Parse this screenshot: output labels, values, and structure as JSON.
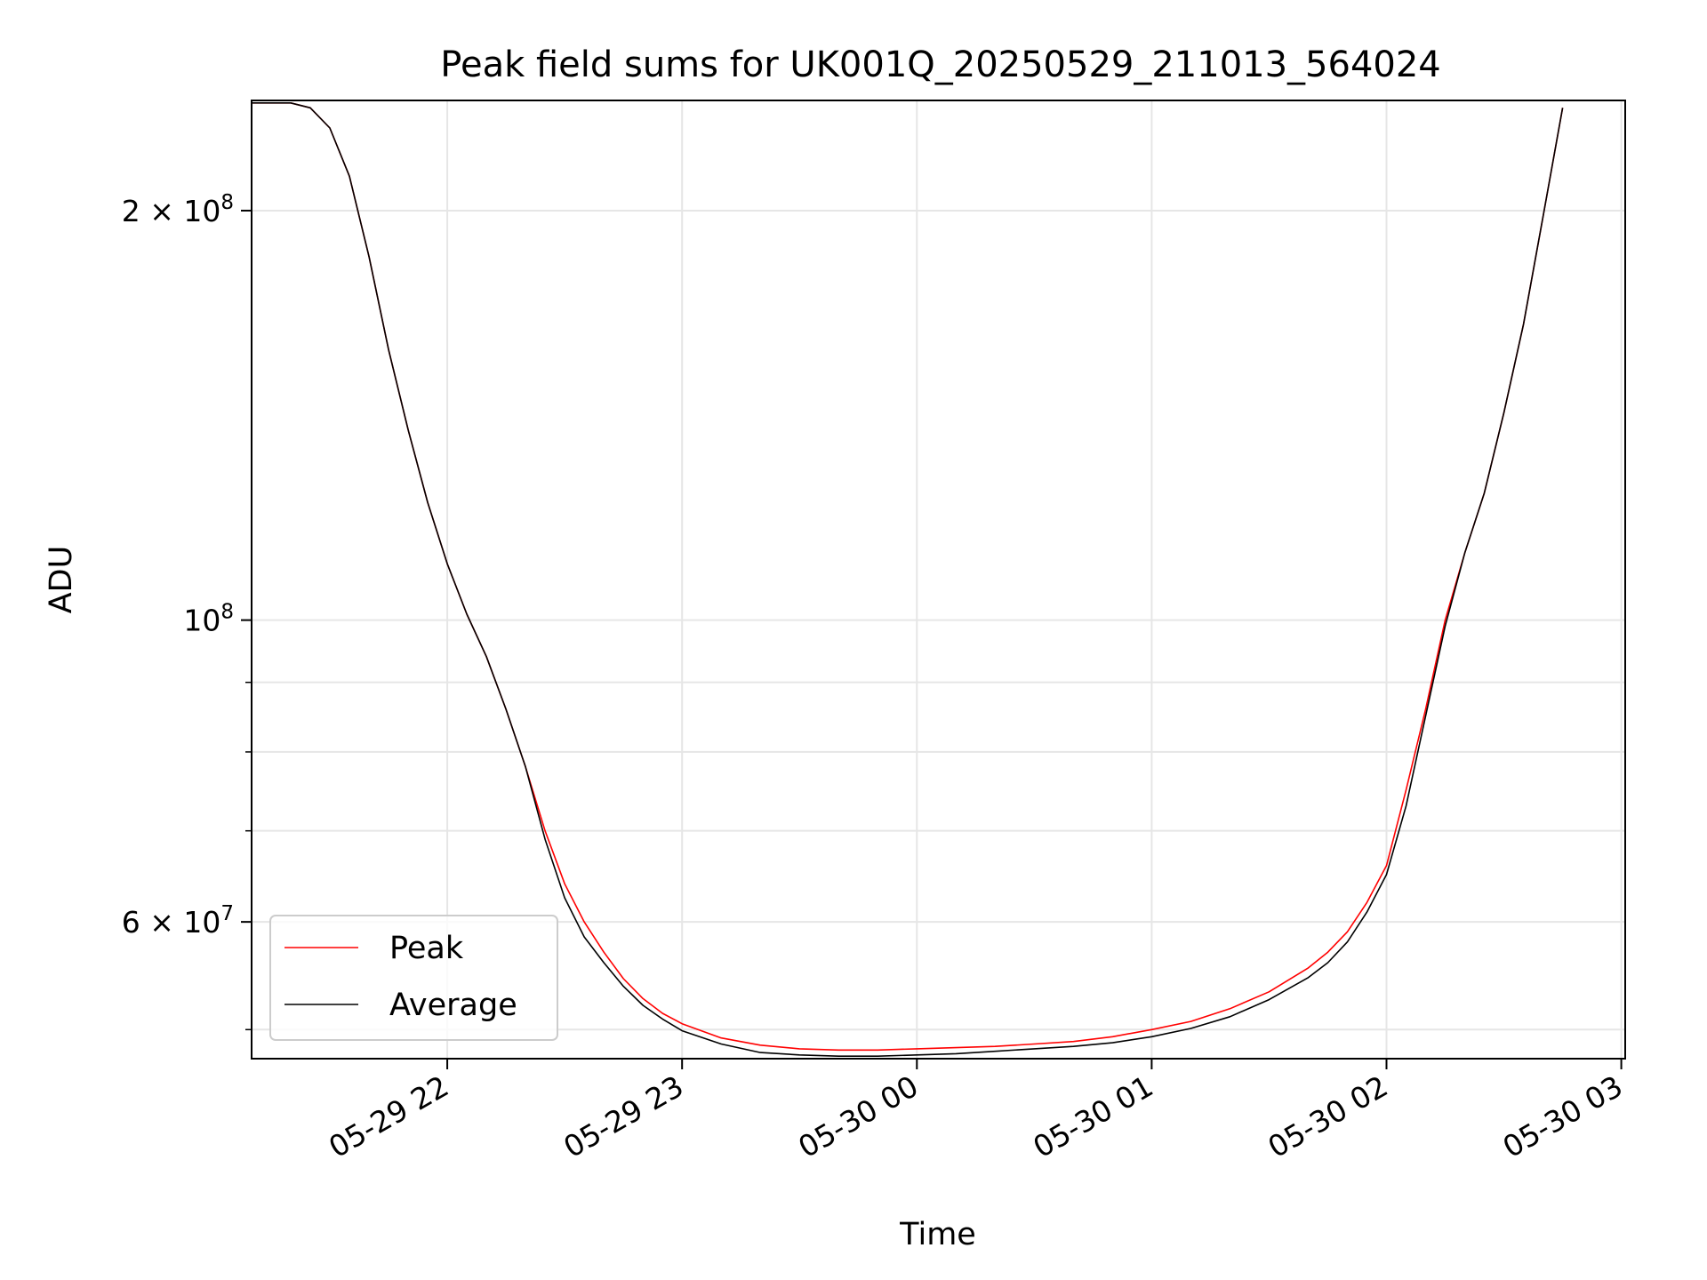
{
  "chart_data": {
    "type": "line",
    "title": "Peak field sums for UK001Q_20250529_211013_564024",
    "xlabel": "Time",
    "ylabel": "ADU",
    "yscale": "log",
    "xlim": [
      "2025-05-29 21:10",
      "2025-05-30 03:01"
    ],
    "ylim": [
      47600000,
      241000000
    ],
    "grid": true,
    "legend_position": "lower-left",
    "x_ticks": [
      {
        "value": "2025-05-29 22:00",
        "label": "05-29 22"
      },
      {
        "value": "2025-05-29 23:00",
        "label": "05-29 23"
      },
      {
        "value": "2025-05-30 00:00",
        "label": "05-30 00"
      },
      {
        "value": "2025-05-30 01:00",
        "label": "05-30 01"
      },
      {
        "value": "2025-05-30 02:00",
        "label": "05-30 02"
      },
      {
        "value": "2025-05-30 03:00",
        "label": "05-30 03"
      }
    ],
    "y_ticks": [
      {
        "value": 60000000,
        "mantissa": "6",
        "base": "10",
        "exp": "7"
      },
      {
        "value": 100000000,
        "mantissa": "",
        "base": "10",
        "exp": "8"
      },
      {
        "value": 200000000,
        "mantissa": "2",
        "base": "10",
        "exp": "8"
      }
    ],
    "y_minor_ticks": [
      50000000,
      70000000,
      80000000,
      90000000
    ],
    "x": [
      "2025-05-29 21:10",
      "2025-05-29 21:20",
      "2025-05-29 21:25",
      "2025-05-29 21:30",
      "2025-05-29 21:35",
      "2025-05-29 21:40",
      "2025-05-29 21:45",
      "2025-05-29 21:50",
      "2025-05-29 21:55",
      "2025-05-29 22:00",
      "2025-05-29 22:05",
      "2025-05-29 22:10",
      "2025-05-29 22:15",
      "2025-05-29 22:20",
      "2025-05-29 22:25",
      "2025-05-29 22:30",
      "2025-05-29 22:35",
      "2025-05-29 22:40",
      "2025-05-29 22:45",
      "2025-05-29 22:50",
      "2025-05-29 22:55",
      "2025-05-29 23:00",
      "2025-05-29 23:10",
      "2025-05-29 23:20",
      "2025-05-29 23:30",
      "2025-05-29 23:40",
      "2025-05-29 23:50",
      "2025-05-30 00:00",
      "2025-05-30 00:10",
      "2025-05-30 00:20",
      "2025-05-30 00:30",
      "2025-05-30 00:40",
      "2025-05-30 00:50",
      "2025-05-30 01:00",
      "2025-05-30 01:10",
      "2025-05-30 01:20",
      "2025-05-30 01:30",
      "2025-05-30 01:40",
      "2025-05-30 01:45",
      "2025-05-30 01:50",
      "2025-05-30 01:55",
      "2025-05-30 02:00",
      "2025-05-30 02:05",
      "2025-05-30 02:10",
      "2025-05-30 02:15",
      "2025-05-30 02:20",
      "2025-05-30 02:25",
      "2025-05-30 02:30",
      "2025-05-30 02:35",
      "2025-05-30 02:40",
      "2025-05-30 02:45"
    ],
    "series": [
      {
        "name": "Peak",
        "color": "#ff0000",
        "values": [
          240000000,
          240000000,
          238000000,
          230000000,
          212000000,
          185000000,
          158000000,
          138000000,
          122000000,
          110000000,
          101000000,
          94000000,
          86000000,
          78000000,
          70000000,
          64000000,
          60000000,
          57000000,
          54500000,
          52700000,
          51400000,
          50500000,
          49300000,
          48700000,
          48400000,
          48300000,
          48300000,
          48400000,
          48500000,
          48600000,
          48800000,
          49000000,
          49400000,
          50000000,
          50700000,
          51800000,
          53300000,
          55500000,
          57000000,
          59000000,
          62000000,
          66000000,
          75000000,
          86000000,
          100000000,
          112000000,
          124000000,
          142000000,
          165000000,
          198000000,
          238000000
        ]
      },
      {
        "name": "Average",
        "color": "#000000",
        "values": [
          240000000,
          240000000,
          238000000,
          230000000,
          212000000,
          185000000,
          158000000,
          138000000,
          122000000,
          110000000,
          101000000,
          94000000,
          86000000,
          78000000,
          69000000,
          62500000,
          58500000,
          56000000,
          53800000,
          52100000,
          50900000,
          49900000,
          48800000,
          48100000,
          47900000,
          47800000,
          47800000,
          47900000,
          48000000,
          48200000,
          48400000,
          48600000,
          48900000,
          49400000,
          50100000,
          51100000,
          52600000,
          54600000,
          56000000,
          58000000,
          61000000,
          65000000,
          73000000,
          85000000,
          99000000,
          112000000,
          124000000,
          142000000,
          165000000,
          198000000,
          238000000
        ]
      }
    ]
  }
}
